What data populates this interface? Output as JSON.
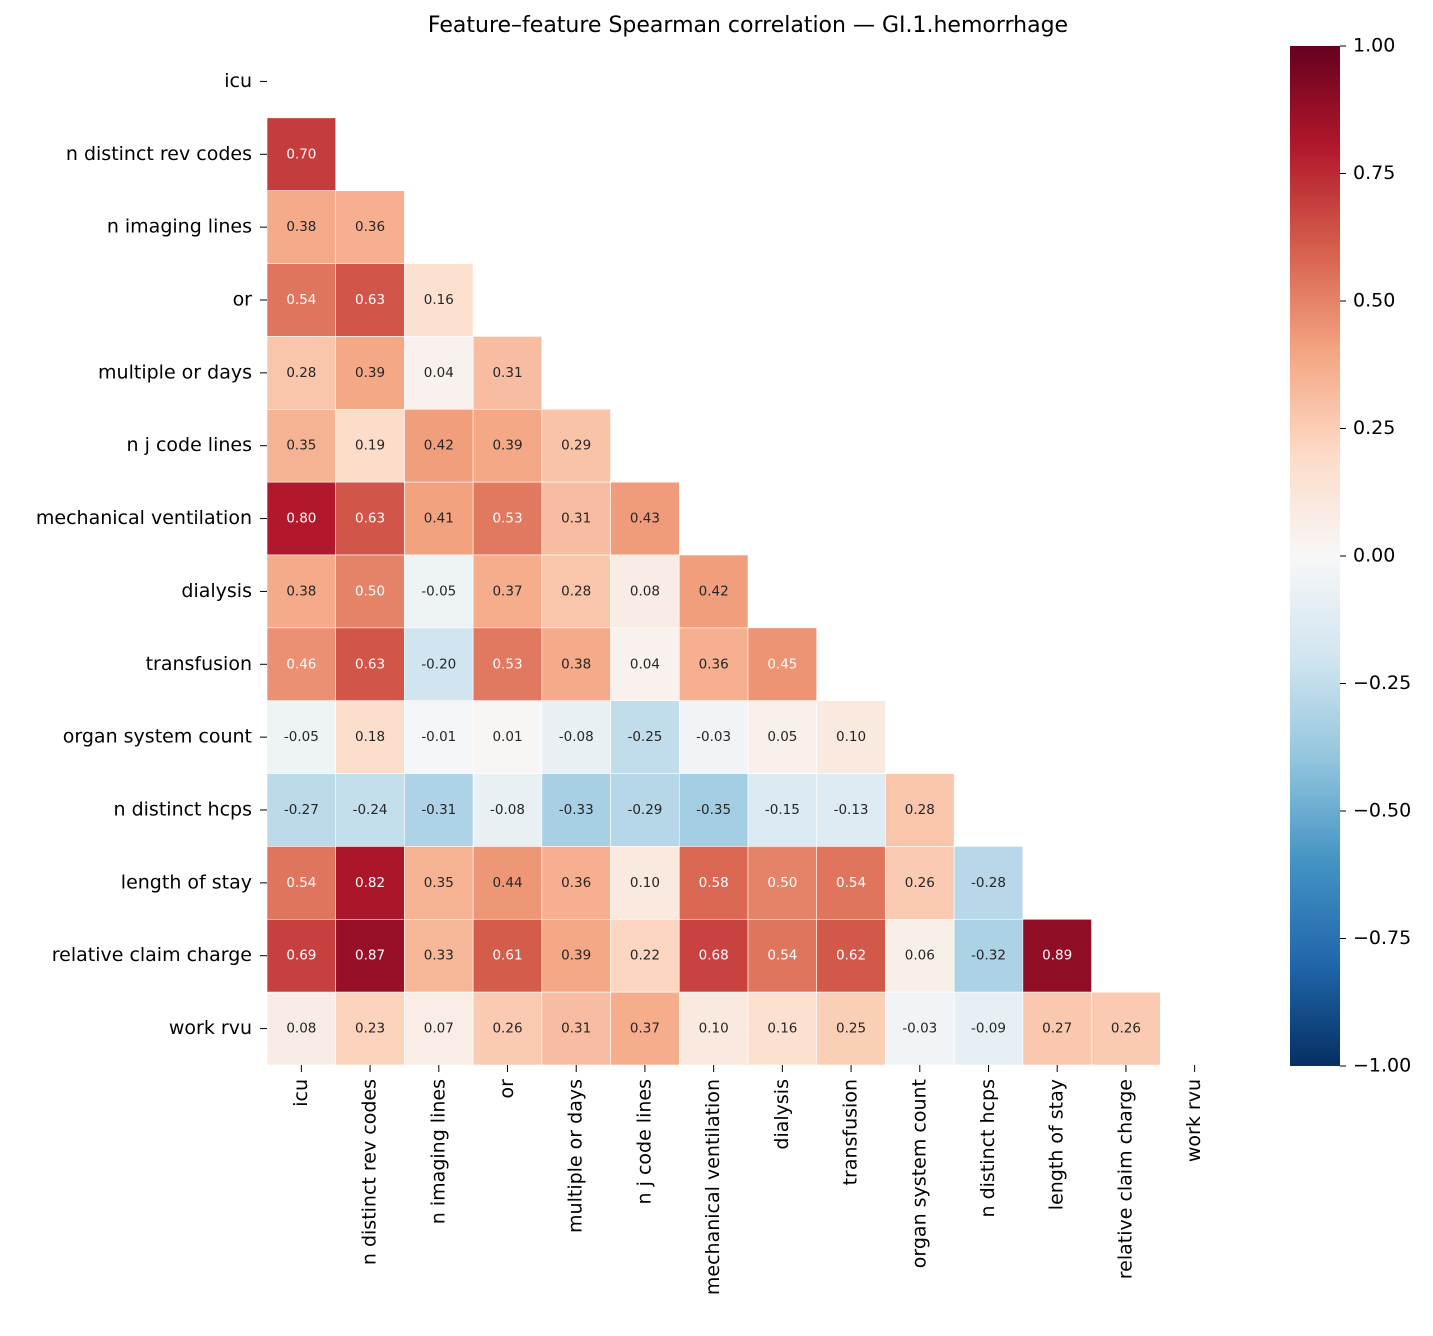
{
  "chart_data": {
    "type": "heatmap",
    "title": "Feature–feature Spearman correlation — GI.1.hemorrhage",
    "categories": [
      "icu",
      "n distinct rev codes",
      "n imaging lines",
      "or",
      "multiple or days",
      "n j code lines",
      "mechanical ventilation",
      "dialysis",
      "transfusion",
      "organ system count",
      "n distinct hcps",
      "length of stay",
      "relative claim charge",
      "work rvu"
    ],
    "values": [
      [],
      [
        0.7
      ],
      [
        0.38,
        0.36
      ],
      [
        0.54,
        0.63,
        0.16
      ],
      [
        0.28,
        0.39,
        0.04,
        0.31
      ],
      [
        0.35,
        0.19,
        0.42,
        0.39,
        0.29
      ],
      [
        0.8,
        0.63,
        0.41,
        0.53,
        0.31,
        0.43
      ],
      [
        0.38,
        0.5,
        -0.05,
        0.37,
        0.28,
        0.08,
        0.42
      ],
      [
        0.46,
        0.63,
        -0.2,
        0.53,
        0.38,
        0.04,
        0.36,
        0.45
      ],
      [
        -0.05,
        0.18,
        -0.01,
        0.01,
        -0.08,
        -0.25,
        -0.03,
        0.05,
        0.1
      ],
      [
        -0.27,
        -0.24,
        -0.31,
        -0.08,
        -0.33,
        -0.29,
        -0.35,
        -0.15,
        -0.13,
        0.28
      ],
      [
        0.54,
        0.82,
        0.35,
        0.44,
        0.36,
        0.1,
        0.58,
        0.5,
        0.54,
        0.26,
        -0.28
      ],
      [
        0.69,
        0.87,
        0.33,
        0.61,
        0.39,
        0.22,
        0.68,
        0.54,
        0.62,
        0.06,
        -0.32,
        0.89
      ],
      [
        0.08,
        0.23,
        0.07,
        0.26,
        0.31,
        0.37,
        0.1,
        0.16,
        0.25,
        -0.03,
        -0.09,
        0.27,
        0.26
      ]
    ],
    "value_labels": [
      [],
      [
        "0.70"
      ],
      [
        "0.38",
        "0.36"
      ],
      [
        "0.54",
        "0.63",
        "0.16"
      ],
      [
        "0.28",
        "0.39",
        "0.04",
        "0.31"
      ],
      [
        "0.35",
        "0.19",
        "0.42",
        "0.39",
        "0.29"
      ],
      [
        "0.80",
        "0.63",
        "0.41",
        "0.53",
        "0.31",
        "0.43"
      ],
      [
        "0.38",
        "0.50",
        "-0.05",
        "0.37",
        "0.28",
        "0.08",
        "0.42"
      ],
      [
        "0.46",
        "0.63",
        "-0.20",
        "0.53",
        "0.38",
        "0.04",
        "0.36",
        "0.45"
      ],
      [
        "-0.05",
        "0.18",
        "-0.01",
        "0.01",
        "-0.08",
        "-0.25",
        "-0.03",
        "0.05",
        "0.10"
      ],
      [
        "-0.27",
        "-0.24",
        "-0.31",
        "-0.08",
        "-0.33",
        "-0.29",
        "-0.35",
        "-0.15",
        "-0.13",
        "0.28"
      ],
      [
        "0.54",
        "0.82",
        "0.35",
        "0.44",
        "0.36",
        "0.10",
        "0.58",
        "0.50",
        "0.54",
        "0.26",
        "-0.28"
      ],
      [
        "0.69",
        "0.87",
        "0.33",
        "0.61",
        "0.39",
        "0.22",
        "0.68",
        "0.54",
        "0.62",
        "0.06",
        "-0.32",
        "0.89"
      ],
      [
        "0.08",
        "0.23",
        "0.07",
        "0.26",
        "0.31",
        "0.37",
        "0.10",
        "0.16",
        "0.25",
        "-0.03",
        "-0.09",
        "0.27",
        "0.26"
      ]
    ],
    "colormap": "RdBu_r",
    "clim": [
      -1,
      1
    ],
    "cticks": [
      {
        "value": -1,
        "label": "−1.00"
      },
      {
        "value": -0.75,
        "label": "−0.75"
      },
      {
        "value": -0.5,
        "label": "−0.50"
      },
      {
        "value": -0.25,
        "label": "−0.25"
      },
      {
        "value": 0,
        "label": "0.00"
      },
      {
        "value": 0.25,
        "label": "0.25"
      },
      {
        "value": 0.5,
        "label": "0.50"
      },
      {
        "value": 0.75,
        "label": "0.75"
      },
      {
        "value": 1,
        "label": "1.00"
      }
    ]
  }
}
